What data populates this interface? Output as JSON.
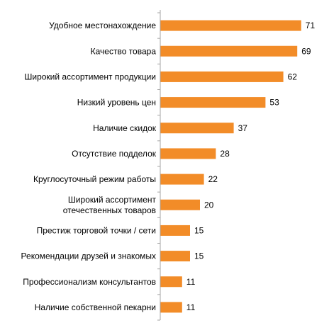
{
  "chart_data": {
    "type": "bar",
    "orientation": "horizontal",
    "categories": [
      [
        "Удобное местонахождение"
      ],
      [
        "Качество товара"
      ],
      [
        "Широкий ассортимент продукции"
      ],
      [
        "Низкий уровень цен"
      ],
      [
        "Наличие скидок"
      ],
      [
        "Отсутствие подделок"
      ],
      [
        "Круглосуточный режим работы"
      ],
      [
        "Широкий ассортимент",
        "отечественных товаров"
      ],
      [
        "Престиж торговой точки / сети"
      ],
      [
        "Рекомендации друзей и знакомых"
      ],
      [
        "Профессионализм консультантов"
      ],
      [
        "Наличие собственной пекарни"
      ]
    ],
    "values": [
      71,
      69,
      62,
      53,
      37,
      28,
      22,
      20,
      15,
      15,
      11,
      11
    ],
    "value_labels": [
      "71",
      "69",
      "62",
      "53",
      "37",
      "28",
      "22",
      "20",
      "15",
      "15",
      "11",
      "11"
    ],
    "xlim": [
      0,
      80
    ],
    "grid": false,
    "legend": "none",
    "bar_color": "#f28c28",
    "axis_color": "#a6a6a6"
  }
}
